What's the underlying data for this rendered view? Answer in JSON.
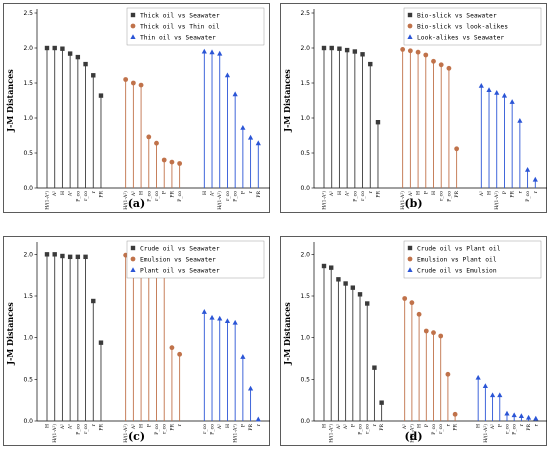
{
  "chart_data": [
    {
      "type": "stem",
      "caption": "(a)",
      "ylabel": "J-M Distances",
      "ylim": [
        0,
        2.5
      ],
      "yticks": [
        "0.0",
        "0.5",
        "1.0",
        "1.5",
        "2.0",
        "2.5"
      ],
      "legend_position": "top-right",
      "series": [
        {
          "name": "Thick oil  vs  Seawater",
          "marker": "square",
          "color": "#3a3a3a",
          "categories": [
            "H/(1-A²)",
            "A²",
            "H",
            "A²",
            "P_co",
            "r_co",
            "r",
            "PR"
          ],
          "values": [
            2.0,
            2.0,
            1.99,
            1.92,
            1.87,
            1.77,
            1.61,
            1.32
          ]
        },
        {
          "name": "Thick oil  vs  Thin oil",
          "marker": "circle",
          "color": "#c0724a",
          "categories": [
            "H/(1-A²)",
            "A²",
            "H",
            "P_co",
            "r_co",
            "P",
            "PR",
            "P_co"
          ],
          "values": [
            1.55,
            1.5,
            1.47,
            0.73,
            0.64,
            0.4,
            0.37,
            0.35
          ]
        },
        {
          "name": "Thin  oil  vs  Seawater",
          "marker": "triangle",
          "color": "#2b55d6",
          "categories": [
            "H",
            "A²",
            "H/(1-A²)",
            "r_co",
            "P_co",
            "P",
            "r",
            "PR"
          ],
          "values": [
            1.95,
            1.94,
            1.92,
            1.61,
            1.34,
            0.86,
            0.72,
            0.64
          ]
        }
      ]
    },
    {
      "type": "stem",
      "caption": "(b)",
      "ylabel": "J-M Distances",
      "ylim": [
        0,
        2.5
      ],
      "yticks": [
        "0.0",
        "0.5",
        "1.0",
        "1.5",
        "2.0",
        "2.5"
      ],
      "legend_position": "top-right",
      "series": [
        {
          "name": "Bio-slick  vs  Seawater",
          "marker": "square",
          "color": "#3a3a3a",
          "categories": [
            "H/(1-A²)",
            "A²",
            "H",
            "A²",
            "P_co",
            "r_co",
            "r",
            "PR"
          ],
          "values": [
            2.0,
            2.0,
            1.99,
            1.97,
            1.95,
            1.91,
            1.77,
            0.94
          ]
        },
        {
          "name": "Bio-slick  vs  look-alikes",
          "marker": "circle",
          "color": "#c0724a",
          "categories": [
            "H/(1-A²)",
            "A²",
            "H",
            "P",
            "H",
            "r_co",
            "P_co",
            "PR"
          ],
          "values": [
            1.98,
            1.96,
            1.94,
            1.9,
            1.81,
            1.76,
            1.71,
            0.56
          ]
        },
        {
          "name": "Look-alikes  vs  Seawater",
          "marker": "triangle",
          "color": "#2b55d6",
          "categories": [
            "A²",
            "H",
            "H/(1-A²)",
            "P",
            "PR",
            "r",
            "P_co",
            "r"
          ],
          "values": [
            1.46,
            1.4,
            1.36,
            1.32,
            1.23,
            0.96,
            0.26,
            0.12
          ]
        }
      ]
    },
    {
      "type": "stem",
      "caption": "(c)",
      "ylabel": "J-M Distances",
      "ylim": [
        0,
        2.1
      ],
      "yticks": [
        "0.0",
        "0.5",
        "1.0",
        "1.5",
        "2.0"
      ],
      "legend_position": "top-right",
      "series": [
        {
          "name": "Crude oil  vs  Seawater",
          "marker": "square",
          "color": "#3a3a3a",
          "categories": [
            "H",
            "H/(1-A²)",
            "A²",
            "A²",
            "P_co",
            "r_co",
            "r",
            "PR"
          ],
          "values": [
            2.0,
            2.0,
            1.98,
            1.97,
            1.97,
            1.97,
            1.44,
            0.94
          ]
        },
        {
          "name": "Emulsion  vs  Seawater",
          "marker": "circle",
          "color": "#c0724a",
          "categories": [
            "H/(1-A²)",
            "A²",
            "H",
            "P",
            "P_co",
            "r_co",
            "PR",
            "r"
          ],
          "values": [
            1.99,
            1.98,
            1.9,
            1.88,
            1.87,
            1.8,
            0.88,
            0.8
          ]
        },
        {
          "name": "Plant oil  vs  Seawater",
          "marker": "triangle",
          "color": "#2b55d6",
          "categories": [
            "r_co",
            "P_co",
            "A²",
            "H",
            "H/(1-A²)",
            "P",
            "PR",
            "r"
          ],
          "values": [
            1.31,
            1.24,
            1.23,
            1.2,
            1.18,
            0.77,
            0.39,
            0.02
          ]
        }
      ]
    },
    {
      "type": "stem",
      "caption": "(d)",
      "ylabel": "J-M Distances",
      "ylim": [
        0,
        2.1
      ],
      "yticks": [
        "0.0",
        "0.5",
        "1.0",
        "1.5",
        "2.0"
      ],
      "legend_position": "top-right",
      "series": [
        {
          "name": "Crude oil  vs  Plant oil",
          "marker": "square",
          "color": "#3a3a3a",
          "categories": [
            "H",
            "H/(1-A²)",
            "A²",
            "A²",
            "P",
            "P_co",
            "r_co",
            "r",
            "PR"
          ],
          "values": [
            1.86,
            1.84,
            1.7,
            1.65,
            1.6,
            1.52,
            1.41,
            0.64,
            0.22
          ]
        },
        {
          "name": "Emulsion  vs  Plant oil",
          "marker": "circle",
          "color": "#c0724a",
          "categories": [
            "A²",
            "H/(1-A²)",
            "H",
            "P",
            "P_co",
            "r_co",
            "r",
            "PR"
          ],
          "values": [
            1.47,
            1.42,
            1.28,
            1.08,
            1.06,
            1.02,
            0.56,
            0.08
          ]
        },
        {
          "name": "Crude oil  vs  Emulsion",
          "marker": "triangle",
          "color": "#2b55d6",
          "categories": [
            "H",
            "H/(1-A²)",
            "A²",
            "P",
            "r_co",
            "P_co",
            "r",
            "PR",
            "r"
          ],
          "values": [
            0.52,
            0.42,
            0.31,
            0.31,
            0.09,
            0.07,
            0.06,
            0.04,
            0.03
          ]
        }
      ]
    }
  ]
}
